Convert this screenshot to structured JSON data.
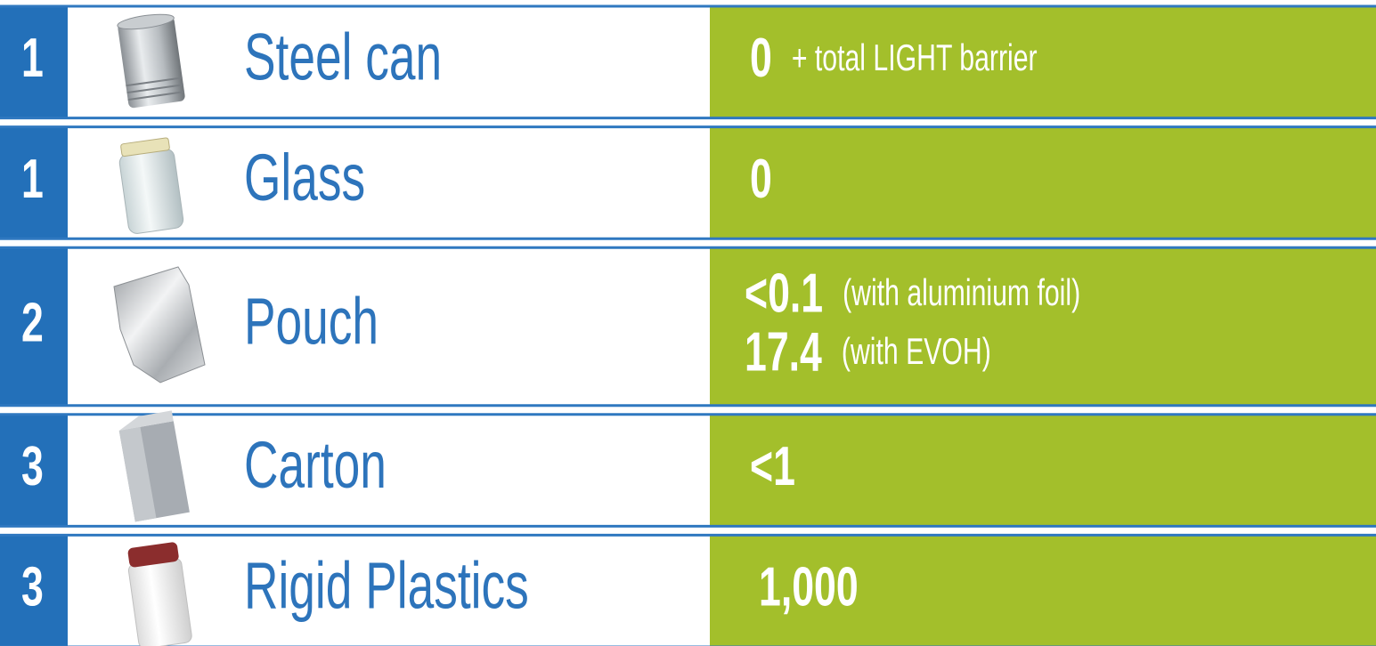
{
  "table": {
    "rows": [
      {
        "rank": "1",
        "name": "Steel can",
        "values": [
          {
            "value": "0",
            "note": "+ total LIGHT barrier"
          }
        ]
      },
      {
        "rank": "1",
        "name": "Glass",
        "values": [
          {
            "value": "0"
          }
        ]
      },
      {
        "rank": "2",
        "name": "Pouch",
        "values": [
          {
            "value": "<0.1",
            "note": "(with aluminium foil)"
          },
          {
            "value": "17.4",
            "note": "(with EVOH)"
          }
        ]
      },
      {
        "rank": "3",
        "name": "Carton",
        "values": [
          {
            "value": "<1"
          }
        ]
      },
      {
        "rank": "3",
        "name": "Rigid Plastics",
        "values": [
          {
            "value": "1,000"
          }
        ]
      }
    ]
  }
}
